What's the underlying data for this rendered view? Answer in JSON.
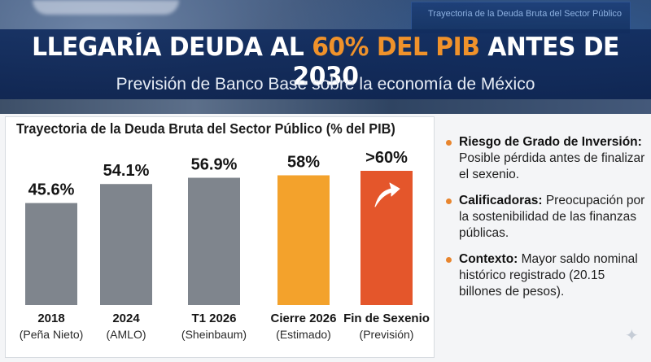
{
  "header": {
    "title_before": "LLEGARÍA DEUDA AL ",
    "title_accent": "60% DEL PIB",
    "title_after": " ANTES DE 2030",
    "subtitle": "Previsión de Banco Base sobre la economía de México"
  },
  "background_screen_text": "Trayectoria de la Deuda Bruta del Sector Público",
  "colors": {
    "accent": "#f0922b",
    "gray_bar": "#7f858d",
    "estimate_bar": "#f3a22c",
    "forecast_bar": "#e4562b",
    "banner": "#12306a"
  },
  "chart_data": {
    "type": "bar",
    "title": "Trayectoria de la Deuda Bruta del Sector Público (% del PIB)",
    "categories": [
      "2018",
      "2024",
      "T1 2026",
      "Cierre 2026",
      "Fin de Sexenio"
    ],
    "category_notes": [
      "(Peña Nieto)",
      "(AMLO)",
      "(Sheinbaum)",
      "(Estimado)",
      "(Previsión)"
    ],
    "values": [
      45.6,
      54.1,
      56.9,
      58,
      60
    ],
    "value_labels": [
      "45.6%",
      "54.1%",
      "56.9%",
      "58%",
      ">60%"
    ],
    "bar_colors": [
      "#7f858d",
      "#7f858d",
      "#7f858d",
      "#f3a22c",
      "#e4562b"
    ],
    "ylim": [
      0,
      100
    ],
    "xlabel": "",
    "ylabel": "",
    "grid": false,
    "up_arrow_on": "Fin de Sexenio"
  },
  "bullets": [
    {
      "title": "Riesgo de Grado de Inversión:",
      "text": "Posible pérdida antes de finalizar el sexenio."
    },
    {
      "title": "Calificadoras:",
      "text": "Preocupación por la sostenibilidad de las finanzas públicas."
    },
    {
      "title": "Contexto:",
      "text": "Mayor saldo nominal histórico registrado (20.15 billones de pesos)."
    }
  ]
}
